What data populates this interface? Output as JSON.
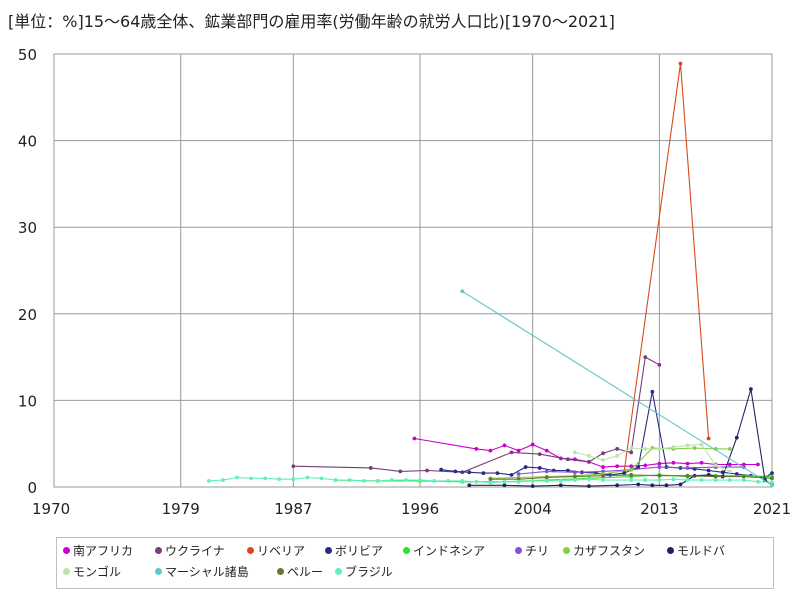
{
  "chart_data": {
    "type": "line",
    "title": "[単位：%]15～64歳全体、鉱業部門の雇用率(労働年齢の就労人口比)[1970～2021]",
    "xlabel": "",
    "ylabel": "",
    "xlim": [
      1970,
      2021
    ],
    "ylim": [
      0,
      50
    ],
    "x_ticks": [
      1970,
      1979,
      1987,
      1996,
      2004,
      2013,
      2021
    ],
    "y_ticks": [
      0,
      10,
      20,
      30,
      40,
      50
    ],
    "grid": true,
    "legend_position": "bottom",
    "series": [
      {
        "name": "南アフリカ",
        "color": "#cc00cc",
        "points": [
          [
            1995.6,
            5.6
          ],
          [
            2000,
            4.4
          ],
          [
            2001,
            4.2
          ],
          [
            2002,
            4.8
          ],
          [
            2003,
            4.2
          ],
          [
            2004,
            4.9
          ],
          [
            2005,
            4.2
          ],
          [
            2006,
            3.3
          ],
          [
            2007,
            3.2
          ],
          [
            2008,
            2.9
          ],
          [
            2009,
            2.3
          ],
          [
            2010,
            2.4
          ],
          [
            2011,
            2.4
          ],
          [
            2012,
            2.5
          ],
          [
            2013,
            2.7
          ],
          [
            2014,
            2.8
          ],
          [
            2015,
            2.7
          ],
          [
            2016,
            2.8
          ],
          [
            2017,
            2.6
          ],
          [
            2018,
            2.6
          ],
          [
            2019,
            2.6
          ],
          [
            2020,
            2.6
          ]
        ]
      },
      {
        "name": "ウクライナ",
        "color": "#7a3b7a",
        "points": [
          [
            1987,
            2.4
          ],
          [
            1992.5,
            2.2
          ],
          [
            1994.6,
            1.8
          ],
          [
            1996.5,
            1.9
          ],
          [
            1999,
            1.7
          ],
          [
            2002.5,
            4.0
          ],
          [
            2004.5,
            3.8
          ],
          [
            2006.5,
            3.2
          ],
          [
            2008,
            2.9
          ],
          [
            2009,
            3.9
          ],
          [
            2010,
            4.4
          ],
          [
            2011,
            4.0
          ],
          [
            2012,
            15.0
          ],
          [
            2013,
            14.1
          ]
        ]
      },
      {
        "name": "リベリア",
        "color": "#d84a1b",
        "points": [
          [
            2010.5,
            1.8
          ],
          [
            2014.5,
            48.9
          ],
          [
            2016.5,
            5.6
          ]
        ]
      },
      {
        "name": "ボリビア",
        "color": "#2a2a8a",
        "points": [
          [
            1997.5,
            2.0
          ],
          [
            1998.5,
            1.8
          ],
          [
            1999.5,
            1.7
          ],
          [
            2000.5,
            1.6
          ],
          [
            2001.5,
            1.6
          ],
          [
            2002.5,
            1.4
          ],
          [
            2003.5,
            2.3
          ],
          [
            2004.5,
            2.2
          ],
          [
            2005.5,
            1.9
          ],
          [
            2006.5,
            1.9
          ],
          [
            2007.5,
            1.7
          ],
          [
            2008.5,
            1.6
          ],
          [
            2009.5,
            1.4
          ],
          [
            2010.5,
            1.6
          ],
          [
            2011.5,
            2.3
          ],
          [
            2012.5,
            11.0
          ],
          [
            2013.5,
            2.3
          ],
          [
            2014.5,
            2.2
          ],
          [
            2015.5,
            2.1
          ],
          [
            2016.5,
            1.9
          ],
          [
            2017.5,
            1.7
          ],
          [
            2018.5,
            1.5
          ],
          [
            2019.5,
            1.3
          ],
          [
            2020.5,
            1.1
          ],
          [
            2021,
            1.6
          ]
        ]
      },
      {
        "name": "インドネシア",
        "color": "#33dd33",
        "points": [
          [
            1990,
            0.8
          ],
          [
            1993,
            0.7
          ],
          [
            1996,
            0.7
          ],
          [
            1999,
            0.6
          ],
          [
            2002,
            0.6
          ],
          [
            2005,
            0.8
          ],
          [
            2008,
            1.0
          ],
          [
            2011,
            1.2
          ],
          [
            2013,
            1.4
          ],
          [
            2015,
            1.2
          ],
          [
            2017,
            1.3
          ],
          [
            2019,
            1.3
          ],
          [
            2021,
            1.2
          ]
        ]
      },
      {
        "name": "チリ",
        "color": "#8b4fcf",
        "points": [
          [
            2003,
            1.5
          ],
          [
            2005,
            1.8
          ],
          [
            2007,
            1.7
          ],
          [
            2009,
            1.8
          ],
          [
            2011,
            2.0
          ],
          [
            2013,
            2.3
          ],
          [
            2015,
            2.2
          ],
          [
            2017,
            2.3
          ],
          [
            2019,
            2.3
          ]
        ]
      },
      {
        "name": "カザフスタン",
        "color": "#88cc44",
        "points": [
          [
            2001,
            1.0
          ],
          [
            2003,
            1.1
          ],
          [
            2005,
            1.2
          ],
          [
            2007,
            1.3
          ],
          [
            2009,
            1.5
          ],
          [
            2011,
            2.0
          ],
          [
            2012.5,
            4.5
          ],
          [
            2014,
            4.4
          ],
          [
            2015.5,
            4.5
          ],
          [
            2017,
            4.4
          ],
          [
            2018,
            4.4
          ]
        ]
      },
      {
        "name": "モルドバ",
        "color": "#222266",
        "points": [
          [
            1999.5,
            0.2
          ],
          [
            2002,
            0.2
          ],
          [
            2004,
            0.1
          ],
          [
            2006,
            0.2
          ],
          [
            2008,
            0.1
          ],
          [
            2010,
            0.2
          ],
          [
            2011.5,
            0.3
          ],
          [
            2012.5,
            0.2
          ],
          [
            2013.5,
            0.2
          ],
          [
            2014.5,
            0.3
          ],
          [
            2015.5,
            1.3
          ],
          [
            2016.5,
            1.4
          ],
          [
            2017.5,
            1.2
          ],
          [
            2018.5,
            5.7
          ],
          [
            2019.5,
            11.3
          ],
          [
            2020.5,
            0.8
          ],
          [
            2021,
            0.3
          ]
        ]
      },
      {
        "name": "モンゴル",
        "color": "#b8e6a8",
        "points": [
          [
            2007,
            4.0
          ],
          [
            2008,
            3.6
          ],
          [
            2009,
            3.1
          ],
          [
            2010,
            3.6
          ],
          [
            2011,
            4.5
          ],
          [
            2012,
            4.4
          ],
          [
            2013,
            4.4
          ],
          [
            2014,
            4.6
          ],
          [
            2015,
            4.8
          ],
          [
            2016,
            4.9
          ],
          [
            2017,
            2.5
          ],
          [
            2018,
            1.8
          ]
        ]
      },
      {
        "name": "マーシャル諸島",
        "color": "#5cc8c8",
        "points": [
          [
            1999,
            22.6
          ],
          [
            2021,
            0.2
          ]
        ]
      },
      {
        "name": "ペルー",
        "color": "#667733",
        "points": [
          [
            2001,
            0.9
          ],
          [
            2003,
            0.9
          ],
          [
            2005,
            1.1
          ],
          [
            2007,
            1.2
          ],
          [
            2009,
            1.3
          ],
          [
            2011,
            1.4
          ],
          [
            2013,
            1.3
          ],
          [
            2015,
            1.3
          ],
          [
            2017,
            1.2
          ],
          [
            2019,
            1.2
          ],
          [
            2021,
            1.0
          ]
        ]
      },
      {
        "name": "ブラジル",
        "color": "#66eebb",
        "points": [
          [
            1981,
            0.7
          ],
          [
            1982,
            0.8
          ],
          [
            1983,
            1.1
          ],
          [
            1984,
            1.0
          ],
          [
            1985,
            1.0
          ],
          [
            1986,
            0.9
          ],
          [
            1987,
            0.9
          ],
          [
            1988,
            1.1
          ],
          [
            1989,
            1.0
          ],
          [
            1990,
            0.8
          ],
          [
            1991,
            0.8
          ],
          [
            1992,
            0.7
          ],
          [
            1993,
            0.7
          ],
          [
            1994,
            0.8
          ],
          [
            1995,
            0.8
          ],
          [
            1996,
            0.8
          ],
          [
            1997,
            0.7
          ],
          [
            1998,
            0.7
          ],
          [
            1999,
            0.7
          ],
          [
            2000,
            0.6
          ],
          [
            2001,
            0.5
          ],
          [
            2002,
            0.6
          ],
          [
            2003,
            0.6
          ],
          [
            2004,
            0.7
          ],
          [
            2005,
            0.7
          ],
          [
            2006,
            0.7
          ],
          [
            2007,
            0.8
          ],
          [
            2008,
            0.9
          ],
          [
            2009,
            0.8
          ],
          [
            2011,
            0.8
          ],
          [
            2012,
            0.8
          ],
          [
            2013,
            0.8
          ],
          [
            2014,
            0.9
          ],
          [
            2015,
            0.8
          ],
          [
            2016,
            0.8
          ],
          [
            2017,
            0.8
          ],
          [
            2018,
            0.8
          ],
          [
            2019,
            0.8
          ],
          [
            2020,
            0.6
          ],
          [
            2021,
            0.5
          ]
        ]
      }
    ]
  }
}
